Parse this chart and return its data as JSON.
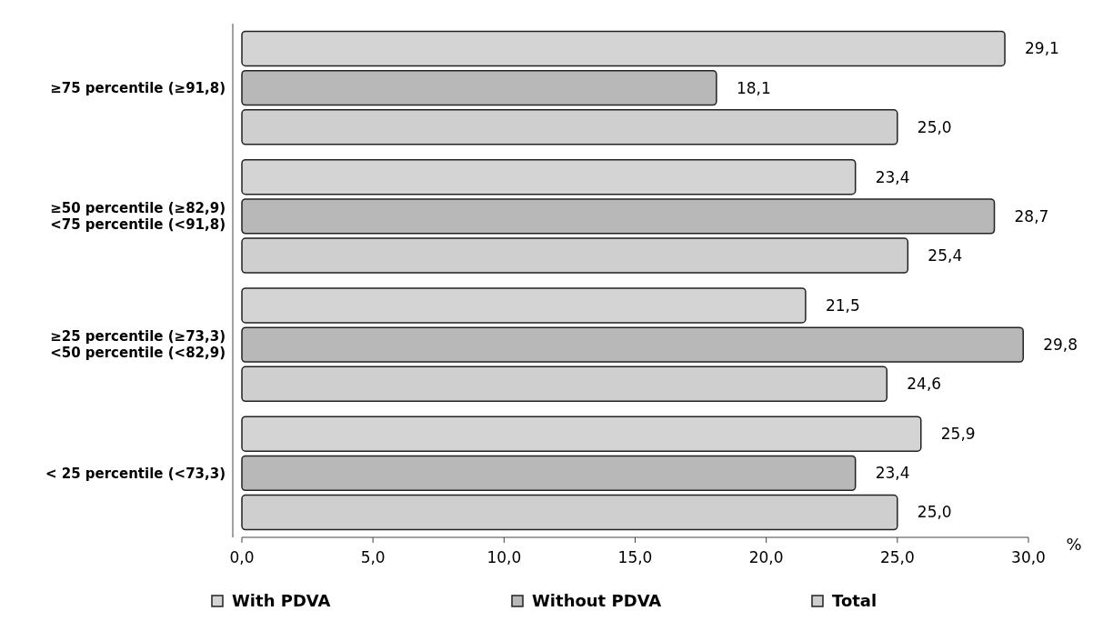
{
  "chart_data": {
    "type": "bar",
    "orientation": "horizontal",
    "xlabel": "%",
    "categories": [
      "≥75 percentile (≥91,8)",
      "≥50 percentile (≥82,9)\n<75 percentile (<91,8)",
      "≥25 percentile (≥73,3)\n<50 percentile (<82,9)",
      "< 25 percentile (<73,3)"
    ],
    "series": [
      {
        "name": "With PDVA",
        "color": "#d4d4d4",
        "values": [
          29.1,
          23.4,
          21.5,
          25.9
        ],
        "value_labels": [
          "29,1",
          "23,4",
          "21,5",
          "25,9"
        ]
      },
      {
        "name": "Without PDVA",
        "color": "#b8b8b8",
        "values": [
          18.1,
          28.7,
          29.8,
          23.4
        ],
        "value_labels": [
          "18,1",
          "28,7",
          "29,8",
          "23,4"
        ]
      },
      {
        "name": "Total",
        "color": "#cfcfcf",
        "values": [
          25.0,
          25.4,
          24.6,
          25.0
        ],
        "value_labels": [
          "25,0",
          "25,4",
          "24,6",
          "25,0"
        ]
      }
    ],
    "xlim": [
      0,
      30
    ],
    "xticks": [
      {
        "value": 0,
        "label": "0,0"
      },
      {
        "value": 5,
        "label": "5,0"
      },
      {
        "value": 10,
        "label": "10,0"
      },
      {
        "value": 15,
        "label": "15,0"
      },
      {
        "value": 20,
        "label": "20,0"
      },
      {
        "value": 25,
        "label": "25,0"
      },
      {
        "value": 30,
        "label": "30,0"
      }
    ],
    "legend": "bottom",
    "grid": false
  }
}
